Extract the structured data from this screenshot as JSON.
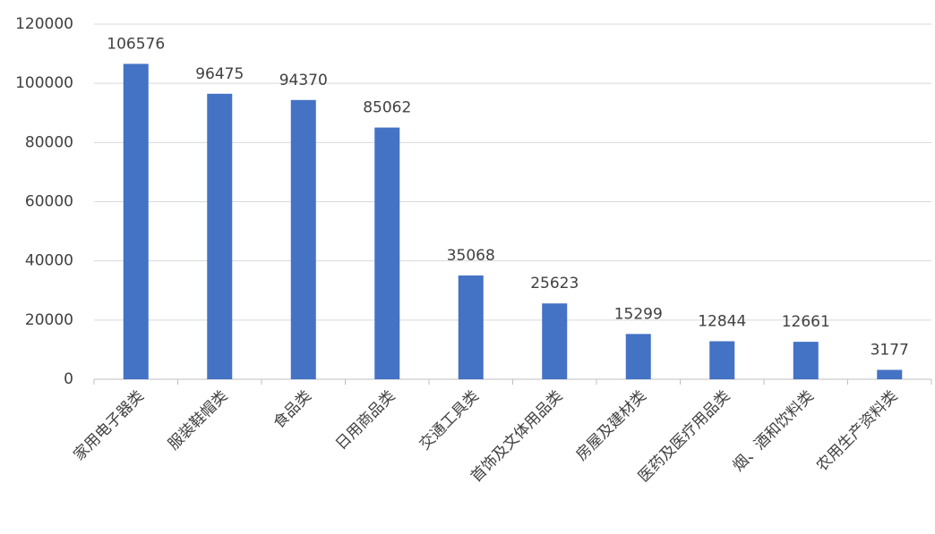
{
  "chart_data": {
    "type": "bar",
    "categories": [
      "家用电子器类",
      "服装鞋帽类",
      "食品类",
      "日用商品类",
      "交通工具类",
      "首饰及文体用品类",
      "房屋及建材类",
      "医药及医疗用品类",
      "烟、酒和饮料类",
      "农用生产资料类"
    ],
    "values": [
      106576,
      96475,
      94370,
      85062,
      35068,
      25623,
      15299,
      12844,
      12661,
      3177
    ],
    "color": "#4472c4",
    "ylim": [
      0,
      120000
    ],
    "yticks": [
      0,
      20000,
      40000,
      60000,
      80000,
      100000,
      120000
    ],
    "grid": true
  }
}
